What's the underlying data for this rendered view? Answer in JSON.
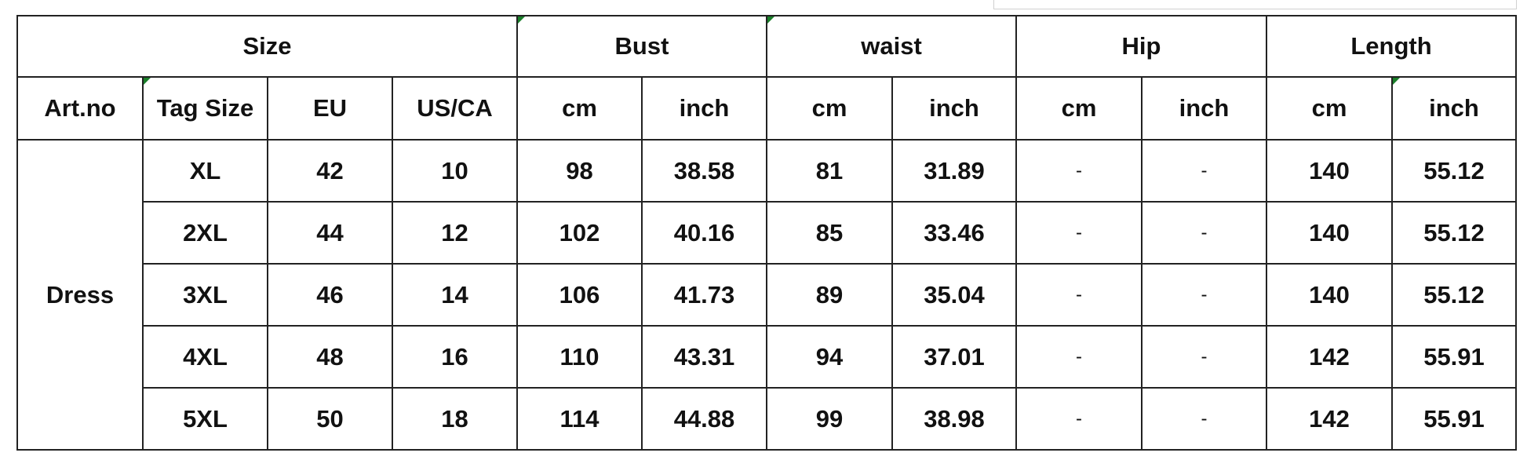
{
  "header_groups": {
    "size": "Size",
    "bust": "Bust",
    "waist": "waist",
    "hip": "Hip",
    "length": "Length"
  },
  "subheaders": [
    "Art.no",
    "Tag Size",
    "EU",
    "US/CA",
    "cm",
    "inch",
    "cm",
    "inch",
    "cm",
    "inch",
    "cm",
    "inch"
  ],
  "art_no": "Dress",
  "rows": [
    [
      "XL",
      "42",
      "10",
      "98",
      "38.58",
      "81",
      "31.89",
      "-",
      "-",
      "140",
      "55.12"
    ],
    [
      "2XL",
      "44",
      "12",
      "102",
      "40.16",
      "85",
      "33.46",
      "-",
      "-",
      "140",
      "55.12"
    ],
    [
      "3XL",
      "46",
      "14",
      "106",
      "41.73",
      "89",
      "35.04",
      "-",
      "-",
      "140",
      "55.12"
    ],
    [
      "4XL",
      "48",
      "16",
      "110",
      "43.31",
      "94",
      "37.01",
      "-",
      "-",
      "142",
      "55.91"
    ],
    [
      "5XL",
      "50",
      "18",
      "114",
      "44.88",
      "99",
      "38.98",
      "-",
      "-",
      "142",
      "55.91"
    ]
  ],
  "colors": {
    "border": "#222222",
    "comment_marker": "#1a7f2a"
  }
}
